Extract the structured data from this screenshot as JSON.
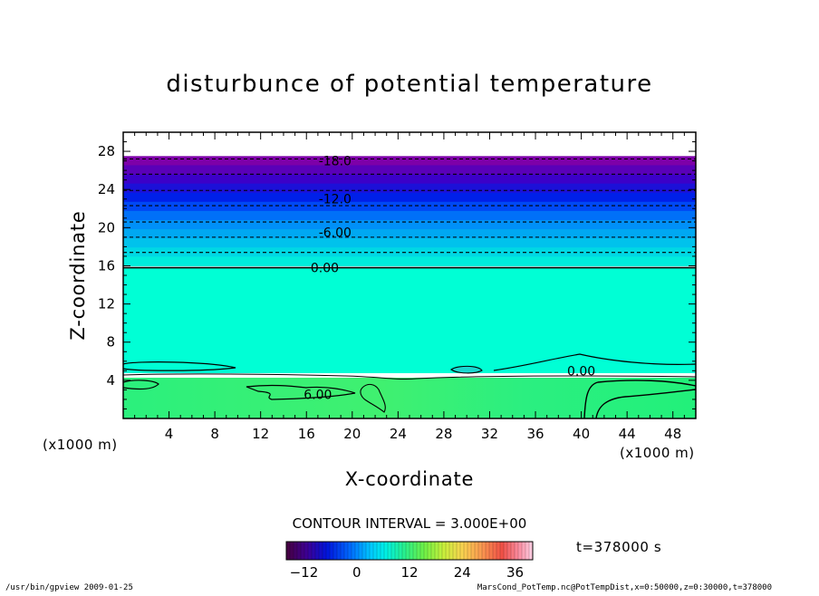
{
  "chart_data": {
    "type": "heatmap",
    "title": "disturbunce of potential temperature",
    "xlabel": "X-coordinate",
    "ylabel": "Z-coordinate",
    "x_unit_left": "(x1000 m)",
    "x_unit_right": "(x1000 m)",
    "xlim": [
      0,
      50
    ],
    "ylim": [
      0,
      30
    ],
    "xticks": [
      "4",
      "8",
      "12",
      "16",
      "20",
      "24",
      "28",
      "32",
      "36",
      "40",
      "44",
      "48"
    ],
    "xtick_values": [
      4,
      8,
      12,
      16,
      20,
      24,
      28,
      32,
      36,
      40,
      44,
      48
    ],
    "yticks": [
      "4",
      "8",
      "12",
      "16",
      "20",
      "24",
      "28"
    ],
    "ytick_values": [
      4,
      8,
      12,
      16,
      20,
      24,
      28
    ],
    "contour_labels": [
      {
        "text": "-18.0",
        "x": 18.5,
        "z": 27.0
      },
      {
        "text": "-12.0",
        "x": 18.5,
        "z": 23.0
      },
      {
        "text": "-6.00",
        "x": 18.5,
        "z": 19.5
      },
      {
        "text": "0.00",
        "x": 17.6,
        "z": 15.8
      },
      {
        "text": "0.00",
        "x": 40.0,
        "z": 5.0
      },
      {
        "text": "6.00",
        "x": 17.0,
        "z": 2.5
      }
    ],
    "contour_lines_z": [
      27.2,
      25.6,
      23.9,
      22.3,
      20.6,
      19.0,
      17.4,
      15.8
    ],
    "contour_interval_text": "CONTOUR INTERVAL = 3.000E+00",
    "time_text": "t=378000 s",
    "colorbar": {
      "range": [
        -16,
        40
      ],
      "tick_values": [
        -12,
        0,
        12,
        24,
        36
      ],
      "tick_labels": [
        "−12",
        "0",
        "12",
        "24",
        "36"
      ]
    },
    "colors": {
      "plot_main": "#00ffd5",
      "plot_lower": "#22f07a",
      "band_top": "#8000b0"
    }
  },
  "footer": {
    "left": "/usr/bin/gpview   2009-01-25",
    "right": "MarsCond_PotTemp.nc@PotTempDist,x=0:50000,z=0:30000,t=378000"
  }
}
